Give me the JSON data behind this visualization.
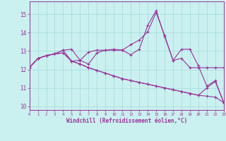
{
  "background_color": "#caf0f0",
  "grid_color": "#aadddd",
  "line_color": "#993399",
  "xlim": [
    0,
    23
  ],
  "ylim": [
    9.8,
    15.7
  ],
  "yticks": [
    10,
    11,
    12,
    13,
    14,
    15
  ],
  "xticks": [
    0,
    1,
    2,
    3,
    4,
    5,
    6,
    7,
    8,
    9,
    10,
    11,
    12,
    13,
    14,
    15,
    16,
    17,
    18,
    19,
    20,
    21,
    22,
    23
  ],
  "xlabel": "Windchill (Refroidissement éolien,°C)",
  "series": [
    [
      12.1,
      12.6,
      12.75,
      12.85,
      13.05,
      13.1,
      12.5,
      12.95,
      13.05,
      13.05,
      13.1,
      13.05,
      13.35,
      13.6,
      14.05,
      15.1,
      13.85,
      12.5,
      13.1,
      13.1,
      12.2,
      11.1,
      11.4,
      10.2
    ],
    [
      12.1,
      12.6,
      12.75,
      12.85,
      13.05,
      12.45,
      12.5,
      12.3,
      12.9,
      13.05,
      13.05,
      13.05,
      12.8,
      13.1,
      14.4,
      15.2,
      13.8,
      12.5,
      12.6,
      12.1,
      12.1,
      12.1,
      12.1,
      12.1
    ],
    [
      12.1,
      12.6,
      12.75,
      12.85,
      12.9,
      12.45,
      12.3,
      12.1,
      11.95,
      11.8,
      11.65,
      11.5,
      11.4,
      11.3,
      11.2,
      11.1,
      11.0,
      10.9,
      10.8,
      10.7,
      10.6,
      10.55,
      10.5,
      10.2
    ],
    [
      12.1,
      12.6,
      12.75,
      12.85,
      12.9,
      12.45,
      12.3,
      12.1,
      11.95,
      11.8,
      11.65,
      11.5,
      11.4,
      11.3,
      11.2,
      11.1,
      11.0,
      10.9,
      10.8,
      10.7,
      10.6,
      11.0,
      11.35,
      10.2
    ]
  ]
}
